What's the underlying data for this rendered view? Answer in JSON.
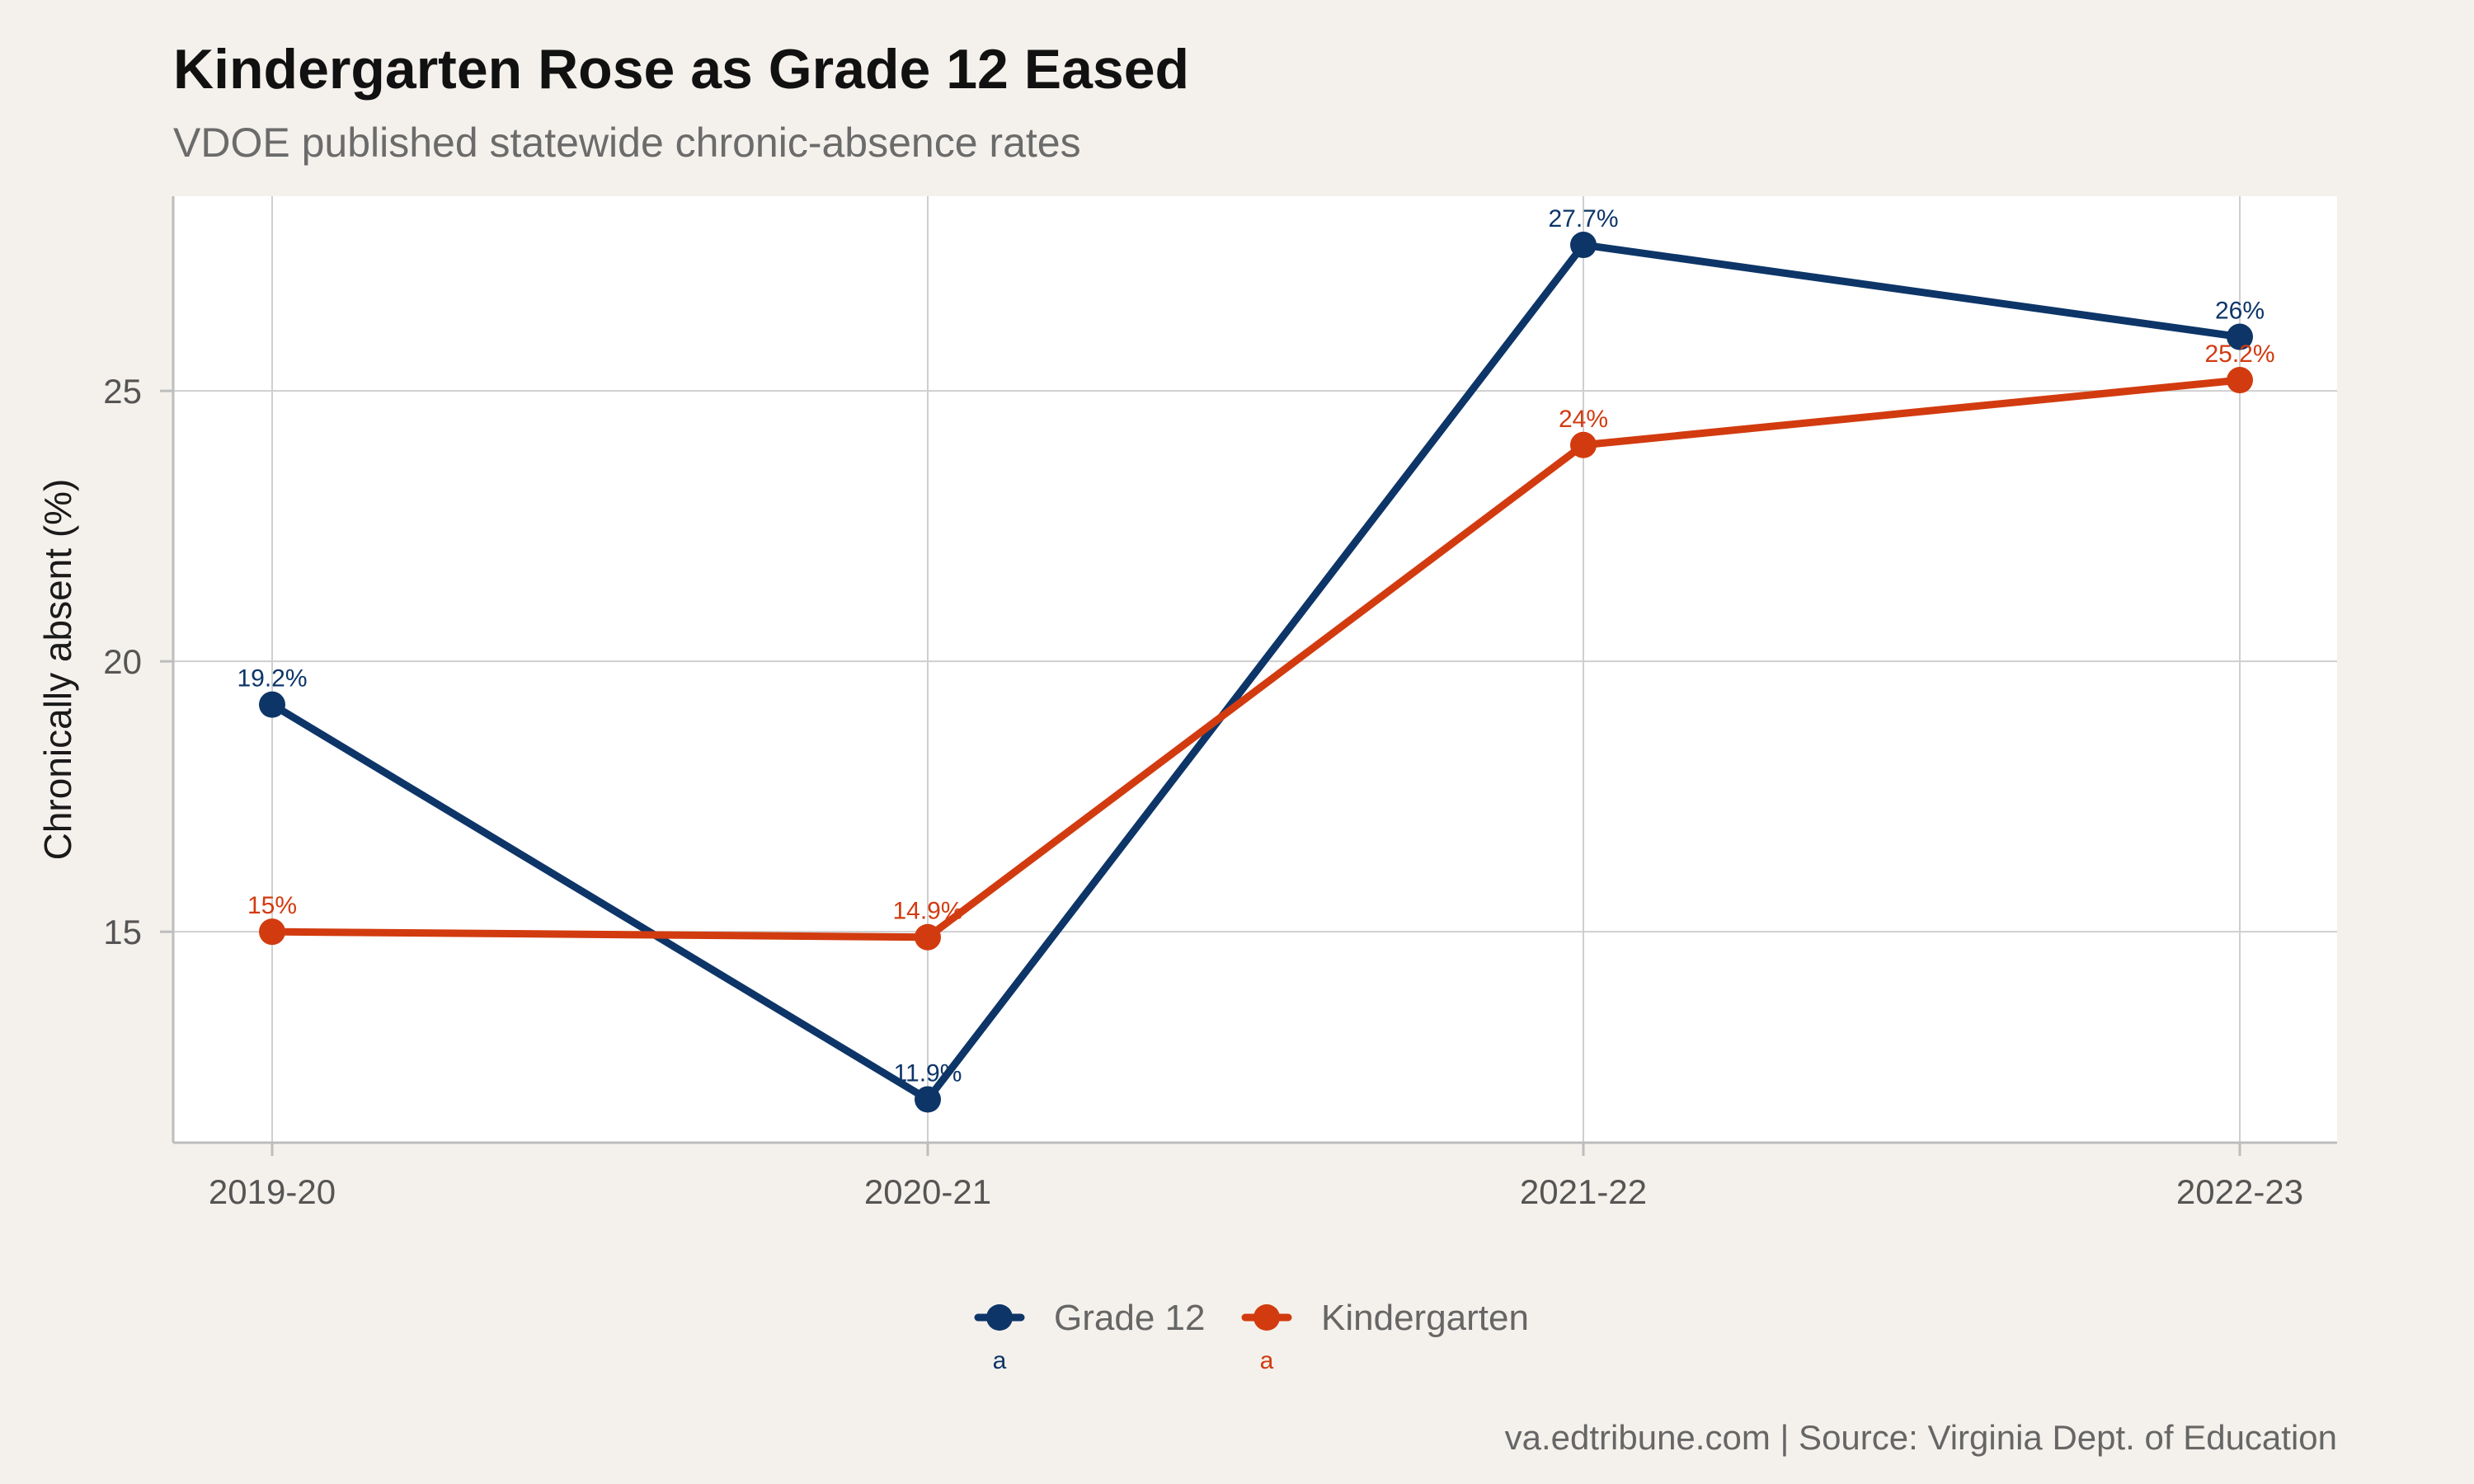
{
  "chart_data": {
    "type": "line",
    "title": "Kindergarten Rose as Grade 12 Eased",
    "subtitle": "VDOE published statewide chronic-absence rates",
    "ylabel": "Chronically absent (%)",
    "xlabel": "",
    "categories": [
      "2019-20",
      "2020-21",
      "2021-22",
      "2022-23"
    ],
    "y_ticks": [
      15,
      20,
      25
    ],
    "ylim": [
      11.1,
      28.6
    ],
    "grid": true,
    "legend_position": "bottom",
    "legend_key_letter": "a",
    "series": [
      {
        "name": "Grade 12",
        "color": "#0d3568",
        "values": [
          19.2,
          11.9,
          27.7,
          26
        ],
        "labels": [
          "19.2%",
          "11.9%",
          "27.7%",
          "26%"
        ]
      },
      {
        "name": "Kindergarten",
        "color": "#d23b0f",
        "values": [
          15,
          14.9,
          24,
          25.2
        ],
        "labels": [
          "15%",
          "14.9%",
          "24%",
          "25.2%"
        ]
      }
    ],
    "caption": "va.edtribune.com | Source: Virginia Dept. of Education"
  }
}
